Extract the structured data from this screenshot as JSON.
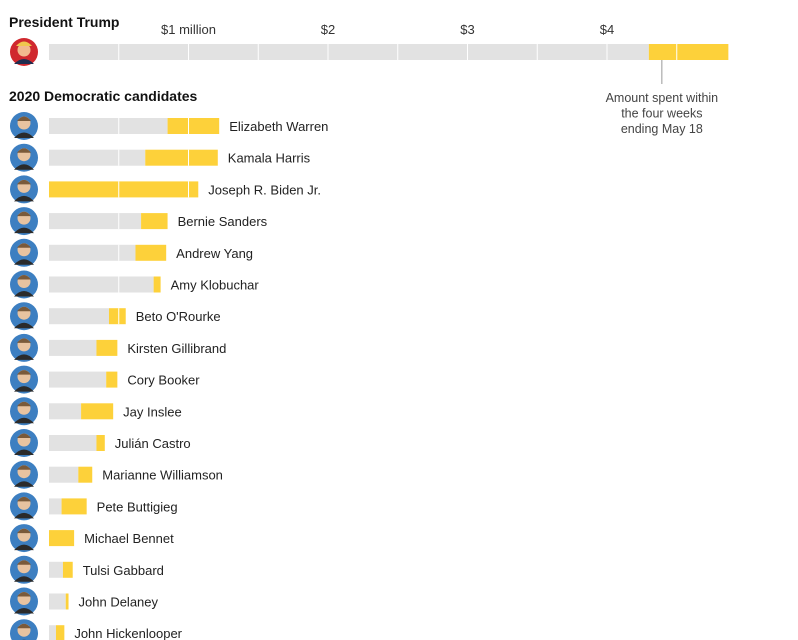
{
  "chart_data": {
    "type": "bar",
    "unit": "$ million",
    "tick_labels": [
      "$1 million",
      "$2",
      "$3",
      "$4"
    ],
    "tick_values": [
      1,
      2,
      3,
      4
    ],
    "section_titles": {
      "trump": "President Trump",
      "democrats": "2020 Democratic candidates"
    },
    "annotation": [
      "Amount spent within",
      "the four weeks",
      "ending May 18"
    ],
    "colors": {
      "earlier": "#e2e2e2",
      "recent": "#fdd13a",
      "divider": "#ffffff",
      "annotation_line": "#999999"
    },
    "trump": {
      "name": "",
      "total": 4.87,
      "recent": 0.57
    },
    "candidates": [
      {
        "name": "Elizabeth Warren",
        "total": 1.22,
        "recent": 0.37
      },
      {
        "name": "Kamala Harris",
        "total": 1.21,
        "recent": 0.52
      },
      {
        "name": "Joseph R. Biden Jr.",
        "total": 1.07,
        "recent": 1.07
      },
      {
        "name": "Bernie Sanders",
        "total": 0.85,
        "recent": 0.19
      },
      {
        "name": "Andrew Yang",
        "total": 0.84,
        "recent": 0.22
      },
      {
        "name": "Amy Klobuchar",
        "total": 0.8,
        "recent": 0.05
      },
      {
        "name": "Beto O'Rourke",
        "total": 0.55,
        "recent": 0.12
      },
      {
        "name": "Kirsten Gillibrand",
        "total": 0.49,
        "recent": 0.15
      },
      {
        "name": "Cory Booker",
        "total": 0.49,
        "recent": 0.08
      },
      {
        "name": "Jay Inslee",
        "total": 0.46,
        "recent": 0.23
      },
      {
        "name": "Julián Castro",
        "total": 0.4,
        "recent": 0.06
      },
      {
        "name": "Marianne Williamson",
        "total": 0.31,
        "recent": 0.1
      },
      {
        "name": "Pete Buttigieg",
        "total": 0.27,
        "recent": 0.18
      },
      {
        "name": "Michael Bennet",
        "total": 0.18,
        "recent": 0.18
      },
      {
        "name": "Tulsi Gabbard",
        "total": 0.17,
        "recent": 0.07
      },
      {
        "name": "John Delaney",
        "total": 0.14,
        "recent": 0.02
      },
      {
        "name": "John Hickenlooper",
        "total": 0.11,
        "recent": 0.06
      }
    ]
  }
}
